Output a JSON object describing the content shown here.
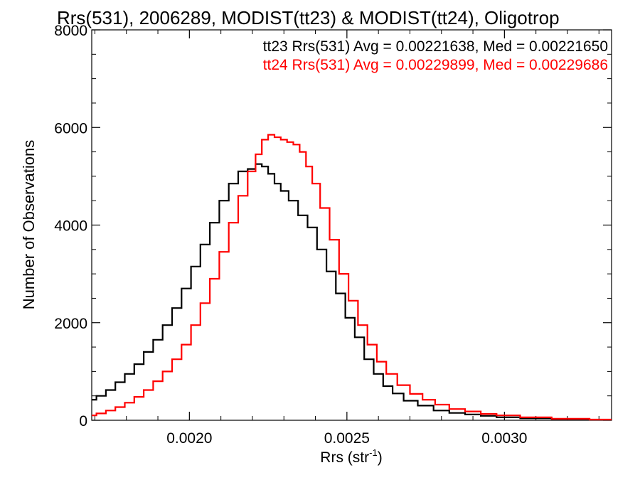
{
  "chart_data": {
    "type": "line",
    "title": "Rrs(531), 2006289, MODIST(tt23) & MODIST(tt24), Oligotrop",
    "xlabel_main": "Rrs (str",
    "xlabel_sup": "-1",
    "xlabel_tail": ")",
    "ylabel": "Number of Observations",
    "xlim": [
      0.00169,
      0.00334
    ],
    "ylim": [
      0,
      8000
    ],
    "xticks": [
      {
        "value": 0.002,
        "label": "0.0020"
      },
      {
        "value": 0.0025,
        "label": "0.0025"
      },
      {
        "value": 0.003,
        "label": "0.0030"
      }
    ],
    "yticks": [
      {
        "value": 0,
        "label": "0"
      },
      {
        "value": 2000,
        "label": "2000"
      },
      {
        "value": 4000,
        "label": "4000"
      },
      {
        "value": 6000,
        "label": "6000"
      },
      {
        "value": 8000,
        "label": "8000"
      }
    ],
    "grid": false,
    "legend_position": "top-right",
    "series": [
      {
        "name": "tt23",
        "legend_text": "tt23 Rrs(531) Avg = 0.00221638, Med = 0.00221650",
        "color": "#000000",
        "x": [
          0.00169,
          0.00172,
          0.00175,
          0.00178,
          0.00181,
          0.00184,
          0.00187,
          0.0019,
          0.00193,
          0.00196,
          0.00199,
          0.00202,
          0.00205,
          0.00208,
          0.00211,
          0.00214,
          0.00217,
          0.0022,
          0.00222,
          0.00224,
          0.00226,
          0.00228,
          0.0023,
          0.00233,
          0.00236,
          0.00239,
          0.00242,
          0.00245,
          0.00248,
          0.00251,
          0.00254,
          0.00257,
          0.0026,
          0.00263,
          0.00266,
          0.0027,
          0.00275,
          0.0028,
          0.00285,
          0.0029,
          0.00295,
          0.003,
          0.0031,
          0.0032,
          0.00334
        ],
        "y": [
          420,
          500,
          620,
          780,
          950,
          1150,
          1400,
          1650,
          1950,
          2300,
          2700,
          3150,
          3600,
          4050,
          4500,
          4850,
          5100,
          5150,
          5250,
          5200,
          5050,
          4850,
          4700,
          4500,
          4200,
          3950,
          3500,
          3050,
          2600,
          2100,
          1700,
          1250,
          950,
          700,
          550,
          400,
          300,
          200,
          150,
          120,
          90,
          60,
          40,
          25,
          10
        ]
      },
      {
        "name": "tt24",
        "legend_text": "tt24 Rrs(531) Avg = 0.00229899, Med = 0.00229686",
        "color": "#ff0000",
        "x": [
          0.00169,
          0.00172,
          0.00175,
          0.00178,
          0.00181,
          0.00184,
          0.00187,
          0.0019,
          0.00193,
          0.00196,
          0.00199,
          0.00202,
          0.00205,
          0.00208,
          0.00211,
          0.00214,
          0.00217,
          0.0022,
          0.00222,
          0.00224,
          0.00226,
          0.00228,
          0.0023,
          0.00232,
          0.00234,
          0.00236,
          0.00238,
          0.0024,
          0.00243,
          0.00246,
          0.00249,
          0.00252,
          0.00255,
          0.00258,
          0.00261,
          0.00264,
          0.00268,
          0.00272,
          0.00276,
          0.0028,
          0.00285,
          0.0029,
          0.00295,
          0.003,
          0.0031,
          0.0032,
          0.00334
        ],
        "y": [
          100,
          140,
          200,
          270,
          360,
          480,
          620,
          800,
          1000,
          1250,
          1550,
          1950,
          2400,
          2900,
          3450,
          4050,
          4600,
          5100,
          5450,
          5750,
          5850,
          5800,
          5750,
          5700,
          5650,
          5500,
          5200,
          4850,
          4350,
          3700,
          3000,
          2450,
          1950,
          1550,
          1200,
          950,
          720,
          540,
          420,
          320,
          230,
          180,
          130,
          100,
          60,
          30,
          15
        ]
      }
    ]
  }
}
